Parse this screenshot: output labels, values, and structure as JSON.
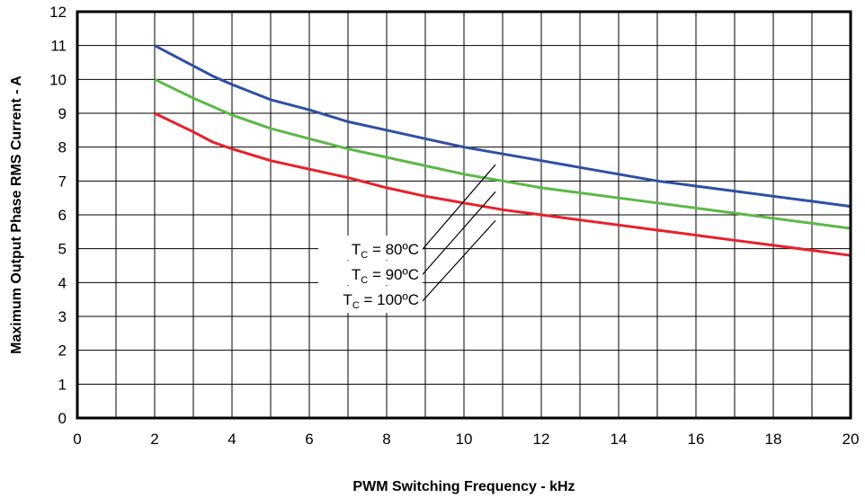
{
  "chart_data": {
    "type": "line",
    "xlabel": "PWM Switching Frequency - kHz",
    "ylabel": "Maximum Output Phase RMS Current - A",
    "xlim": [
      0,
      20
    ],
    "ylim": [
      0,
      12
    ],
    "x_ticks": [
      "0",
      "2",
      "4",
      "6",
      "8",
      "10",
      "12",
      "14",
      "16",
      "18",
      "20"
    ],
    "y_ticks": [
      "0",
      "1",
      "2",
      "3",
      "4",
      "5",
      "6",
      "7",
      "8",
      "9",
      "10",
      "11",
      "12"
    ],
    "grid": true,
    "x": [
      2,
      3,
      3.5,
      4,
      5,
      6,
      7,
      8,
      9,
      10,
      11,
      12,
      13,
      14,
      15,
      16,
      17,
      18,
      19,
      20
    ],
    "series": [
      {
        "name": "TC = 80°C",
        "label_main": "T",
        "label_sub": "C",
        "label_rest": " = 80ºC",
        "color": "#2e4fa3",
        "values": [
          11.0,
          10.4,
          10.1,
          9.85,
          9.4,
          9.1,
          8.75,
          8.5,
          8.25,
          8.0,
          7.8,
          7.6,
          7.4,
          7.2,
          7.0,
          6.85,
          6.7,
          6.55,
          6.4,
          6.25
        ]
      },
      {
        "name": "TC = 90°C",
        "label_main": "T",
        "label_sub": "C",
        "label_rest": " = 90ºC",
        "color": "#5cb848",
        "values": [
          10.0,
          9.45,
          9.2,
          8.95,
          8.55,
          8.25,
          7.95,
          7.7,
          7.45,
          7.2,
          7.0,
          6.8,
          6.65,
          6.5,
          6.35,
          6.2,
          6.05,
          5.9,
          5.75,
          5.6
        ]
      },
      {
        "name": "TC = 100°C",
        "label_main": "T",
        "label_sub": "C",
        "label_rest": " = 100ºC",
        "color": "#e8202a",
        "values": [
          9.0,
          8.45,
          8.15,
          7.95,
          7.6,
          7.35,
          7.1,
          6.8,
          6.55,
          6.35,
          6.15,
          6.0,
          5.85,
          5.7,
          5.55,
          5.4,
          5.25,
          5.1,
          4.95,
          4.8
        ]
      }
    ]
  }
}
